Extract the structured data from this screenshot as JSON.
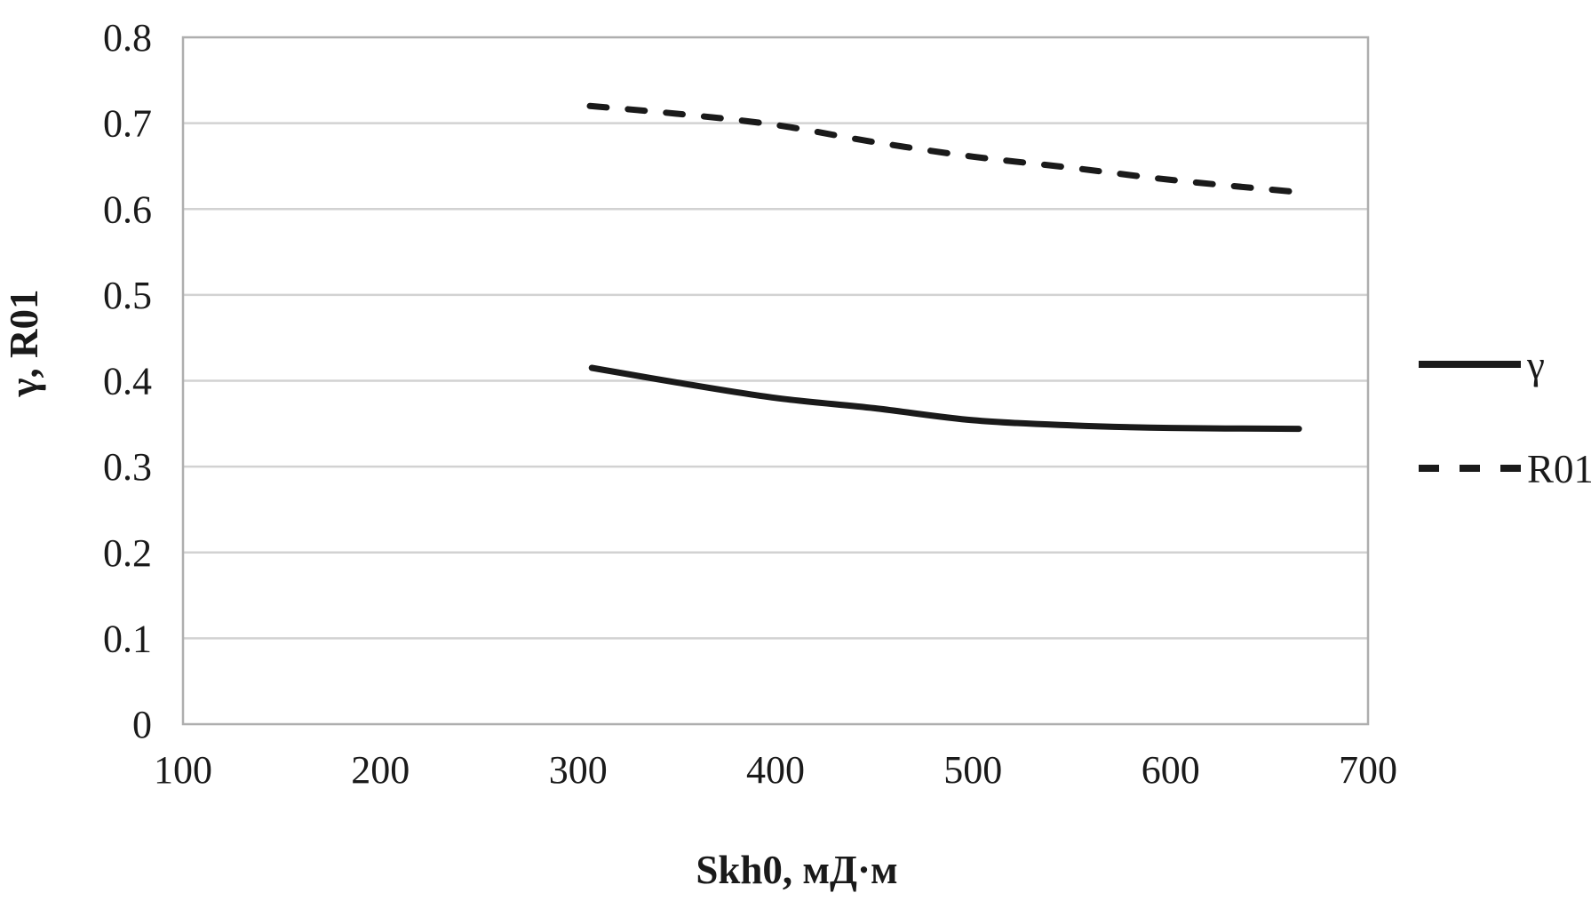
{
  "figure": {
    "background": "#ffffff"
  },
  "chart_data": {
    "type": "line",
    "title": "",
    "xlabel": "Skh0, мД·м",
    "ylabel": "γ, R01",
    "xlim": [
      100,
      700
    ],
    "ylim": [
      0,
      0.8
    ],
    "x_tick_values": [
      100,
      200,
      300,
      400,
      500,
      600,
      700
    ],
    "x_tick_labels": [
      "100",
      "200",
      "300",
      "400",
      "500",
      "600",
      "700"
    ],
    "y_tick_values": [
      0,
      0.1,
      0.2,
      0.3,
      0.4,
      0.5,
      0.6,
      0.7,
      0.8
    ],
    "y_tick_labels": [
      "0",
      "0.1",
      "0.2",
      "0.3",
      "0.4",
      "0.5",
      "0.6",
      "0.7",
      "0.8"
    ],
    "grid": "horizontal-only",
    "legend_position": "right-outside",
    "colors": {
      "line": "#1a1a1a",
      "text": "#1a1a1a",
      "gridline": "#d2d2d2",
      "plot_border": "#aeaeae",
      "background": "#ffffff"
    },
    "series": [
      {
        "name": "γ",
        "line_style": "solid",
        "points": [
          [
            307,
            0.415
          ],
          [
            350,
            0.398
          ],
          [
            400,
            0.38
          ],
          [
            450,
            0.368
          ],
          [
            500,
            0.354
          ],
          [
            550,
            0.348
          ],
          [
            600,
            0.345
          ],
          [
            665,
            0.344
          ]
        ]
      },
      {
        "name": "R01",
        "line_style": "dashed",
        "points": [
          [
            306,
            0.72
          ],
          [
            350,
            0.711
          ],
          [
            400,
            0.698
          ],
          [
            450,
            0.678
          ],
          [
            500,
            0.661
          ],
          [
            550,
            0.648
          ],
          [
            600,
            0.634
          ],
          [
            663,
            0.62
          ]
        ]
      }
    ]
  }
}
